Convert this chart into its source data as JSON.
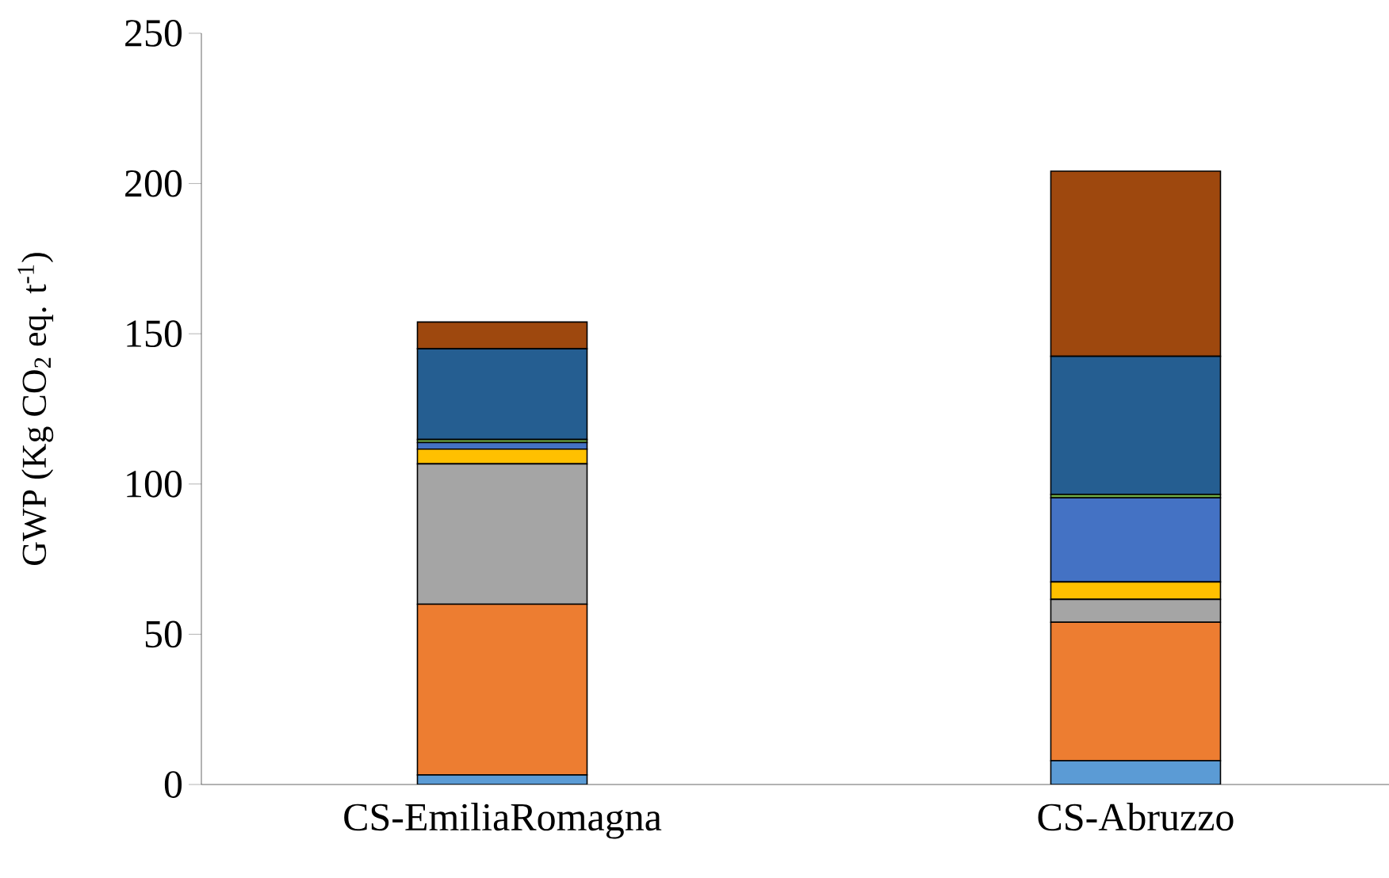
{
  "chart_data": {
    "type": "bar",
    "stacked": true,
    "ylabel": "GWP (Kg CO$_{2}$ eq. t$^{-1}$)",
    "categories": [
      "CS-EmiliaRomagna",
      "CS-Abruzzo"
    ],
    "ylim": [
      0,
      250
    ],
    "yticks": [
      0,
      50,
      100,
      150,
      200,
      250
    ],
    "grid": false,
    "series": [
      {
        "color": "#5b9bd5",
        "values": [
          3.2,
          7.9
        ]
      },
      {
        "color": "#ed7d31",
        "values": [
          56.8,
          46.1
        ]
      },
      {
        "color": "#a5a5a5",
        "values": [
          46.7,
          7.6
        ]
      },
      {
        "color": "#ffc000",
        "values": [
          4.9,
          5.8
        ]
      },
      {
        "color": "#4472c4",
        "values": [
          2.2,
          28.0
        ]
      },
      {
        "color": "#70ad47",
        "values": [
          1.0,
          1.1
        ]
      },
      {
        "color": "#255e91",
        "values": [
          30.2,
          46.0
        ]
      },
      {
        "color": "#9e480e",
        "values": [
          8.9,
          61.6
        ]
      }
    ]
  }
}
